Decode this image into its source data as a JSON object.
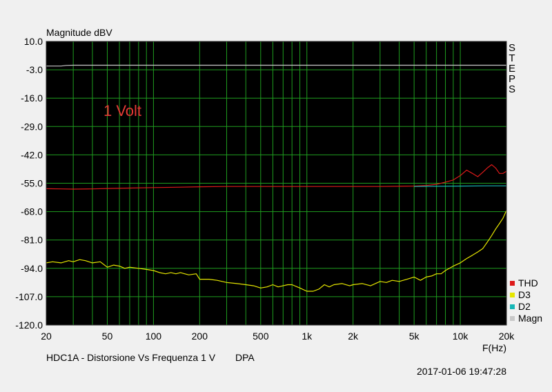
{
  "chart_data": {
    "type": "line",
    "ylabel": "Magnitude dBV",
    "xlabel": "F(Hz)",
    "xscale": "log",
    "xlim": [
      20,
      20000
    ],
    "ylim": [
      -120,
      10
    ],
    "x_ticks": [
      20,
      30,
      40,
      50,
      60,
      70,
      80,
      90,
      100,
      200,
      300,
      400,
      500,
      600,
      700,
      800,
      900,
      1000,
      2000,
      3000,
      4000,
      5000,
      6000,
      7000,
      8000,
      9000,
      10000,
      20000
    ],
    "x_tick_labels": [
      {
        "value": 20,
        "label": "20"
      },
      {
        "value": 50,
        "label": "50"
      },
      {
        "value": 100,
        "label": "100"
      },
      {
        "value": 200,
        "label": "200"
      },
      {
        "value": 500,
        "label": "500"
      },
      {
        "value": 1000,
        "label": "1k"
      },
      {
        "value": 2000,
        "label": "2k"
      },
      {
        "value": 5000,
        "label": "5k"
      },
      {
        "value": 10000,
        "label": "10k"
      },
      {
        "value": 20000,
        "label": "20k"
      }
    ],
    "y_ticks": [
      10.0,
      -3.0,
      -16.0,
      -29.0,
      -42.0,
      -55.0,
      -68.0,
      -81.0,
      -94.0,
      -107.0,
      -120.0
    ],
    "y_tick_labels": [
      "10.0",
      "-3.0",
      "-16.0",
      "-29.0",
      "-42.0",
      "-55.0",
      "-68.0",
      "-81.0",
      "-94.0",
      "-107.0",
      "-120.0"
    ],
    "grid": true,
    "legend_placement": "bottom-right",
    "annotation": {
      "text": "1 Volt",
      "color": "#e53935"
    },
    "steps_label": "STEPS",
    "series": [
      {
        "name": "THD",
        "color": "#dd1a1a",
        "x": [
          20,
          25,
          30,
          40,
          50,
          70,
          100,
          150,
          200,
          300,
          500,
          700,
          1000,
          1500,
          2000,
          3000,
          4000,
          5000,
          6000,
          7000,
          8000,
          9000,
          10000,
          11000,
          12000,
          13000,
          14000,
          15000,
          16000,
          17000,
          18000,
          19000,
          20000
        ],
        "y": [
          -57.5,
          -57.6,
          -57.7,
          -57.6,
          -57.4,
          -57.2,
          -57.0,
          -56.8,
          -56.6,
          -56.5,
          -56.5,
          -56.5,
          -56.5,
          -56.5,
          -56.5,
          -56.5,
          -56.4,
          -56.3,
          -56.0,
          -55.5,
          -54.5,
          -53.5,
          -51.5,
          -49.0,
          -50.5,
          -52.0,
          -50.0,
          -48.0,
          -46.5,
          -48.0,
          -50.5,
          -50.5,
          -49.5
        ]
      },
      {
        "name": "D3",
        "color": "#e6e600",
        "x": [
          20,
          22,
          25,
          28,
          30,
          33,
          36,
          40,
          45,
          50,
          55,
          60,
          65,
          70,
          80,
          90,
          100,
          110,
          120,
          130,
          140,
          150,
          170,
          190,
          200,
          230,
          260,
          300,
          350,
          400,
          450,
          500,
          550,
          600,
          650,
          700,
          750,
          800,
          900,
          1000,
          1100,
          1200,
          1300,
          1400,
          1500,
          1700,
          1900,
          2000,
          2300,
          2600,
          3000,
          3300,
          3600,
          4000,
          4500,
          5000,
          5500,
          6000,
          6500,
          7000,
          7500,
          8000,
          9000,
          10000,
          11000,
          12000,
          13000,
          14000,
          15000,
          16000,
          17000,
          18000,
          19000,
          20000
        ],
        "y": [
          -91.5,
          -91.0,
          -91.5,
          -90.5,
          -91.0,
          -90.0,
          -90.5,
          -91.5,
          -91.0,
          -93.5,
          -92.5,
          -93.0,
          -94.0,
          -93.5,
          -94.0,
          -94.5,
          -95.0,
          -96.0,
          -96.5,
          -96.0,
          -96.5,
          -96.0,
          -97.0,
          -96.5,
          -99.0,
          -99.0,
          -99.5,
          -100.5,
          -101.0,
          -101.5,
          -102.0,
          -103.0,
          -102.5,
          -101.5,
          -102.5,
          -102.0,
          -101.5,
          -101.5,
          -103.0,
          -104.5,
          -104.5,
          -103.5,
          -101.5,
          -102.5,
          -101.5,
          -101.0,
          -102.0,
          -101.5,
          -101.0,
          -102.0,
          -100.0,
          -100.5,
          -99.5,
          -100.0,
          -99.0,
          -98.0,
          -99.5,
          -98.0,
          -97.5,
          -96.5,
          -96.5,
          -95.0,
          -93.0,
          -91.5,
          -89.5,
          -88.0,
          -86.5,
          -85.0,
          -82.0,
          -79.0,
          -76.0,
          -73.5,
          -71.0,
          -67.5
        ]
      },
      {
        "name": "D2",
        "color": "#17b7b7",
        "x": [
          5000,
          7000,
          10000,
          15000,
          20000
        ],
        "y": [
          -56.5,
          -56.4,
          -56.3,
          -56.2,
          -56.2
        ]
      },
      {
        "name": "Magn",
        "color": "#c8c8c8",
        "x": [
          20,
          25,
          27,
          30,
          50,
          100,
          1000,
          10000,
          20000
        ],
        "y": [
          -1.3,
          -1.3,
          -1.0,
          -0.9,
          -0.9,
          -0.9,
          -0.9,
          -0.9,
          -0.9
        ]
      }
    ]
  },
  "footer": {
    "caption": "HDC1A - Distorsione Vs Frequenza 1 V",
    "tag": "DPA",
    "timestamp": "2017-01-06 19:47:28"
  }
}
